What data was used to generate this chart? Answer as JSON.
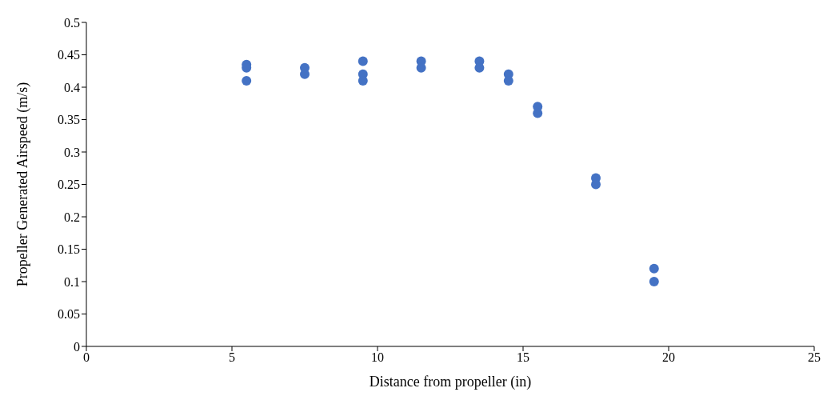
{
  "chart_data": {
    "type": "scatter",
    "xlabel": "Distance from propeller (in)",
    "ylabel": "Propeller Generated Airspeed (m/s)",
    "x": [
      5.5,
      5.5,
      5.5,
      7.5,
      7.5,
      9.5,
      9.5,
      9.5,
      11.5,
      11.5,
      13.5,
      13.5,
      14.5,
      14.5,
      15.5,
      15.5,
      17.5,
      17.5,
      19.5,
      19.5
    ],
    "values": [
      0.435,
      0.43,
      0.41,
      0.43,
      0.42,
      0.44,
      0.42,
      0.41,
      0.44,
      0.43,
      0.44,
      0.43,
      0.42,
      0.41,
      0.37,
      0.36,
      0.26,
      0.25,
      0.12,
      0.1
    ],
    "color": "#4472c4",
    "marker": "circle",
    "grid": false,
    "xlim": [
      0,
      25
    ],
    "xticks": [
      0,
      5,
      10,
      15,
      20,
      25
    ],
    "ylim": [
      0,
      0.5
    ],
    "yticks": [
      0,
      0.05,
      0.1,
      0.15,
      0.2,
      0.25,
      0.3,
      0.35,
      0.4,
      0.45,
      0.5
    ]
  }
}
